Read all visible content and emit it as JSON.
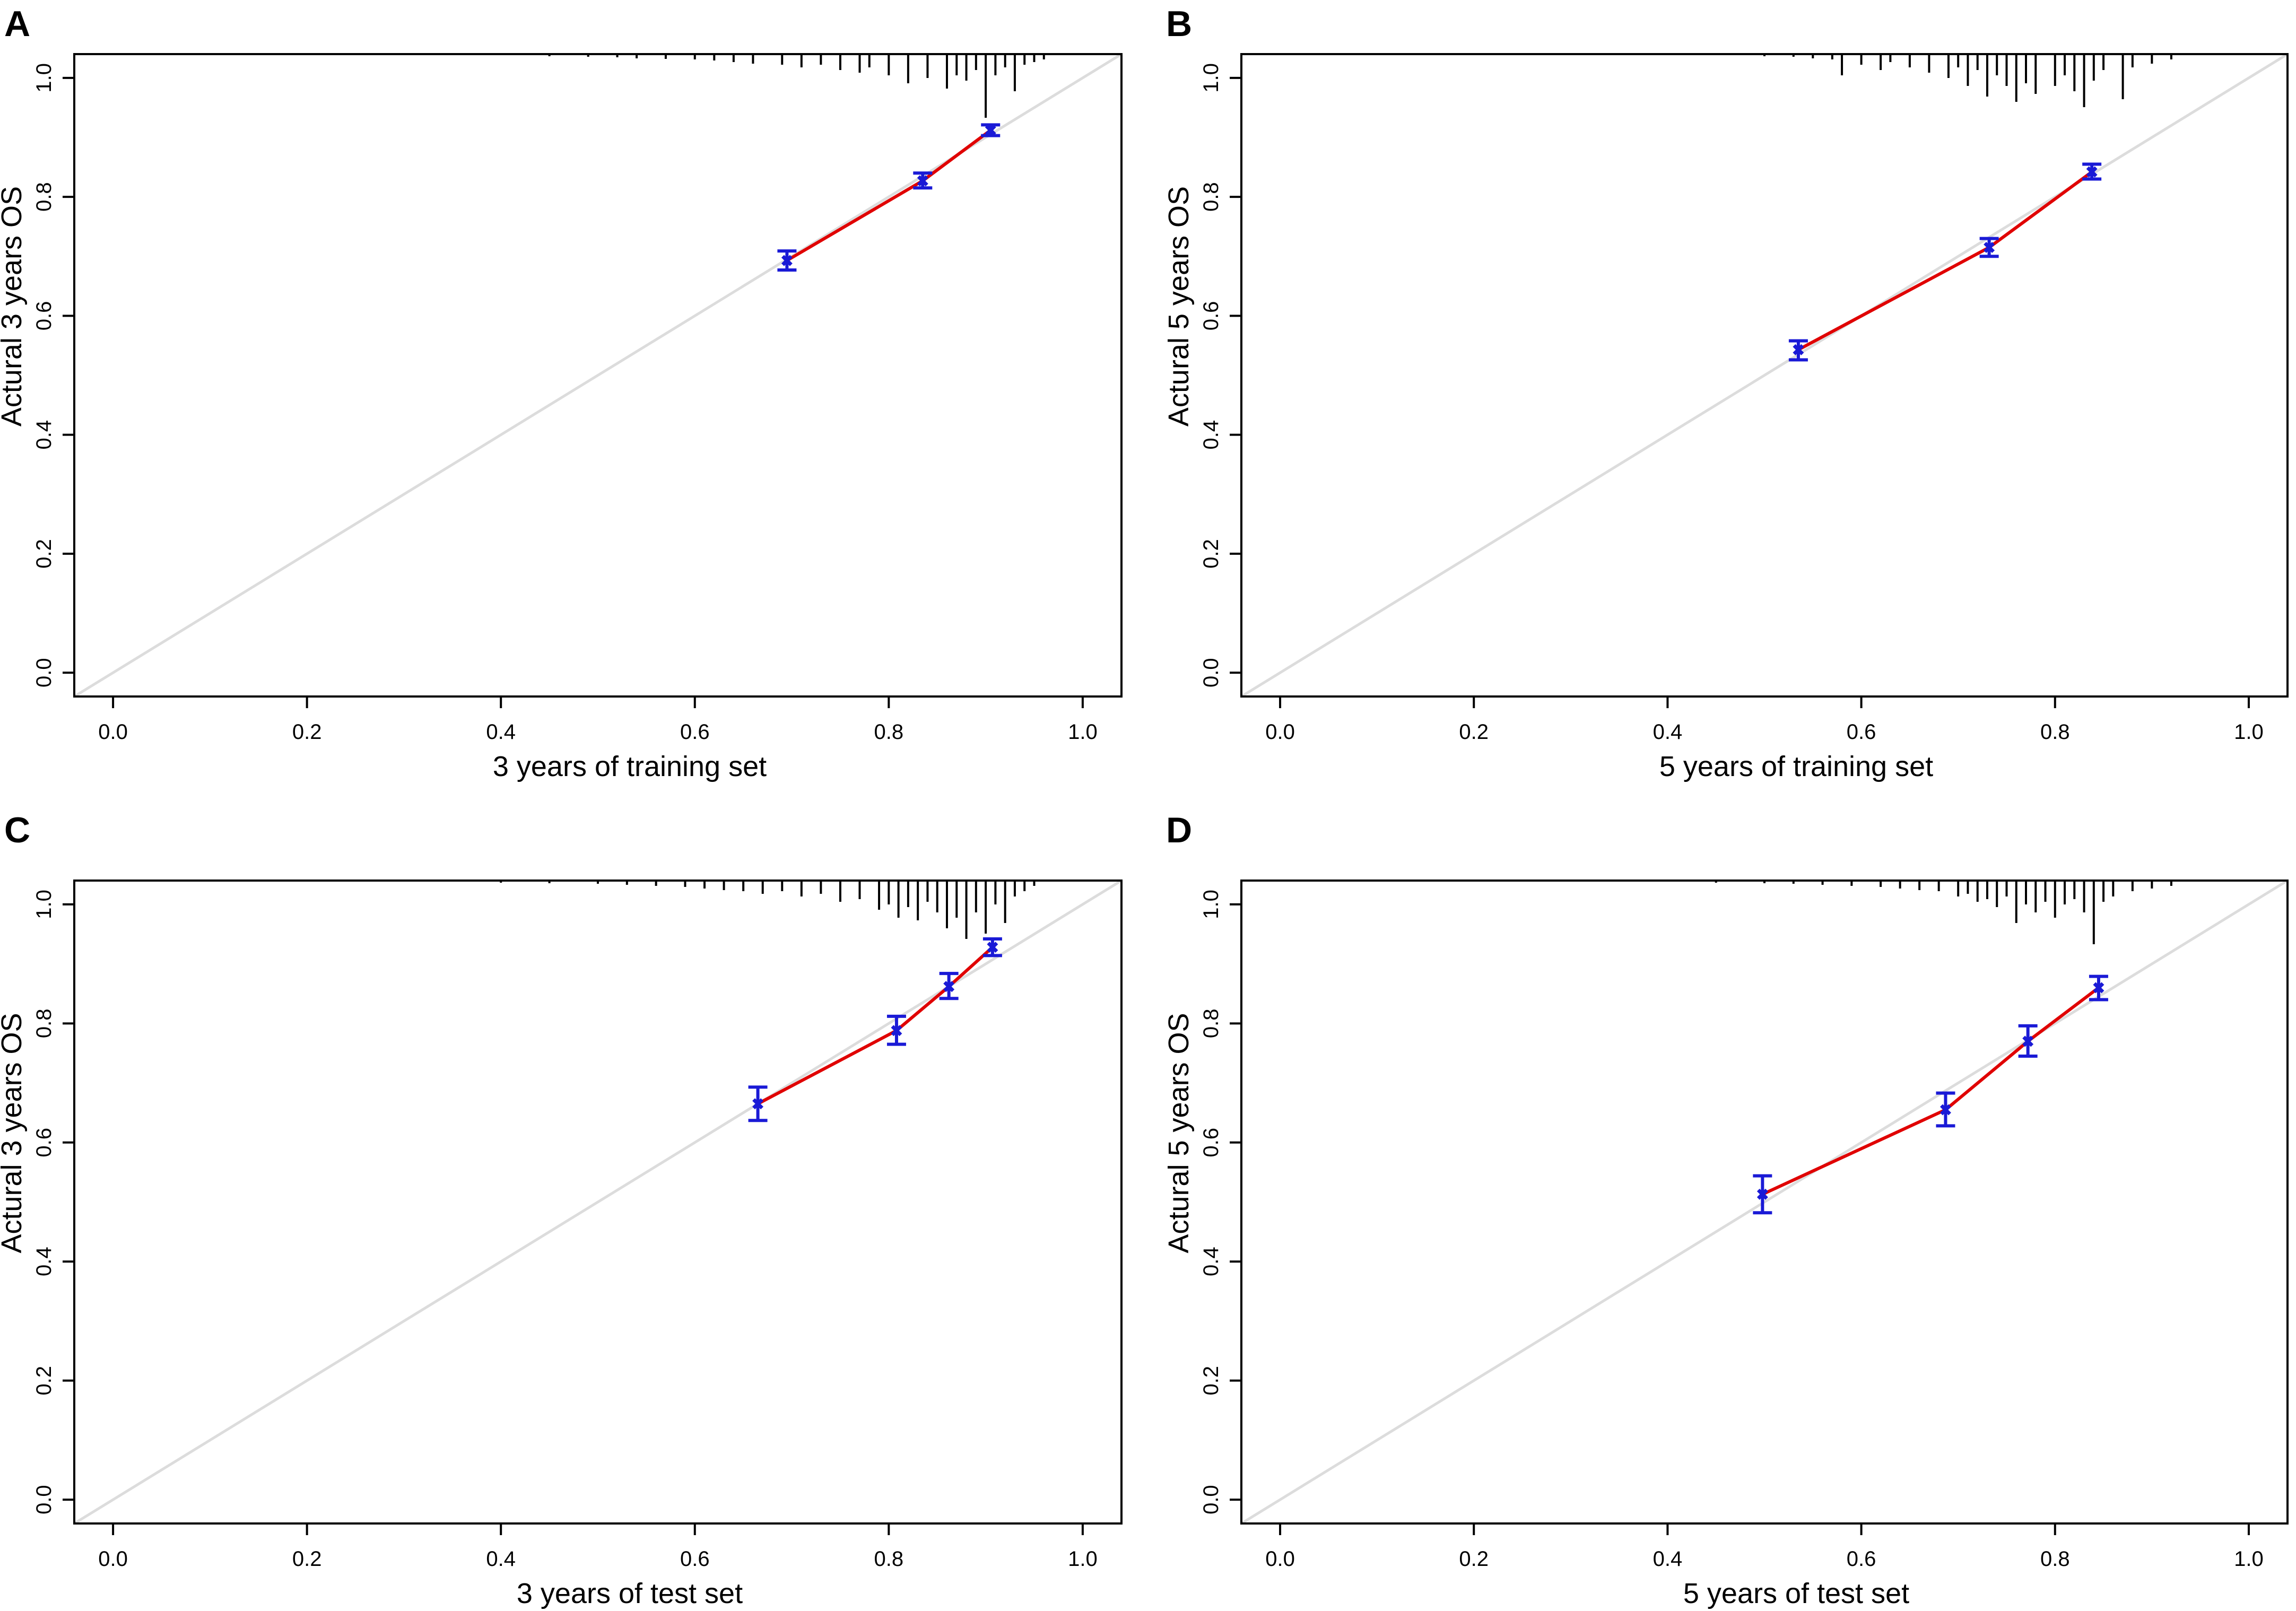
{
  "figure": {
    "kind": "calibration plots"
  },
  "chart_data": [
    {
      "type": "line",
      "panel": "A",
      "xlabel": "3 years of training set",
      "ylabel": "Actural 3 years OS",
      "xlim": [
        -0.04,
        1.04
      ],
      "ylim": [
        -0.04,
        1.04
      ],
      "ticks": [
        "0.0",
        "0.2",
        "0.4",
        "0.6",
        "0.8",
        "1.0"
      ],
      "tick_values": [
        0,
        0.2,
        0.4,
        0.6,
        0.8,
        1.0
      ],
      "reference_line": {
        "from": [
          -0.04,
          -0.04
        ],
        "to": [
          1.04,
          1.04
        ],
        "color": "#dcdcdc"
      },
      "series": [
        {
          "name": "calibration",
          "color": "#e00000",
          "points": [
            {
              "x": 0.695,
              "y": 0.693,
              "lo": 0.677,
              "hi": 0.709
            },
            {
              "x": 0.835,
              "y": 0.827,
              "lo": 0.815,
              "hi": 0.84
            },
            {
              "x": 0.905,
              "y": 0.912,
              "lo": 0.903,
              "hi": 0.921
            }
          ]
        }
      ],
      "errorbar_color": "#1a1ad6",
      "rug": [
        [
          0.45,
          4
        ],
        [
          0.49,
          5
        ],
        [
          0.52,
          6
        ],
        [
          0.54,
          8
        ],
        [
          0.57,
          9
        ],
        [
          0.6,
          10
        ],
        [
          0.62,
          12
        ],
        [
          0.64,
          15
        ],
        [
          0.66,
          18
        ],
        [
          0.69,
          20
        ],
        [
          0.71,
          25
        ],
        [
          0.73,
          20
        ],
        [
          0.75,
          30
        ],
        [
          0.77,
          35
        ],
        [
          0.78,
          25
        ],
        [
          0.8,
          40
        ],
        [
          0.82,
          55
        ],
        [
          0.84,
          45
        ],
        [
          0.86,
          65
        ],
        [
          0.87,
          40
        ],
        [
          0.88,
          50
        ],
        [
          0.89,
          30
        ],
        [
          0.9,
          120
        ],
        [
          0.91,
          40
        ],
        [
          0.92,
          25
        ],
        [
          0.93,
          70
        ],
        [
          0.94,
          20
        ],
        [
          0.95,
          15
        ],
        [
          0.96,
          10
        ]
      ]
    },
    {
      "type": "line",
      "panel": "B",
      "xlabel": "5 years of training set",
      "ylabel": "Actural 5 years OS",
      "xlim": [
        -0.04,
        1.04
      ],
      "ylim": [
        -0.04,
        1.04
      ],
      "ticks": [
        "0.0",
        "0.2",
        "0.4",
        "0.6",
        "0.8",
        "1.0"
      ],
      "tick_values": [
        0,
        0.2,
        0.4,
        0.6,
        0.8,
        1.0
      ],
      "reference_line": {
        "from": [
          -0.04,
          -0.04
        ],
        "to": [
          1.04,
          1.04
        ],
        "color": "#dcdcdc"
      },
      "series": [
        {
          "name": "calibration",
          "color": "#e00000",
          "points": [
            {
              "x": 0.535,
              "y": 0.543,
              "lo": 0.526,
              "hi": 0.558
            },
            {
              "x": 0.732,
              "y": 0.715,
              "lo": 0.7,
              "hi": 0.73
            },
            {
              "x": 0.838,
              "y": 0.842,
              "lo": 0.83,
              "hi": 0.855
            }
          ]
        }
      ],
      "errorbar_color": "#1a1ad6",
      "rug": [
        [
          0.5,
          4
        ],
        [
          0.53,
          5
        ],
        [
          0.55,
          8
        ],
        [
          0.57,
          10
        ],
        [
          0.58,
          40
        ],
        [
          0.6,
          20
        ],
        [
          0.62,
          30
        ],
        [
          0.63,
          15
        ],
        [
          0.65,
          25
        ],
        [
          0.67,
          35
        ],
        [
          0.69,
          45
        ],
        [
          0.7,
          25
        ],
        [
          0.71,
          60
        ],
        [
          0.72,
          30
        ],
        [
          0.73,
          80
        ],
        [
          0.74,
          40
        ],
        [
          0.75,
          60
        ],
        [
          0.76,
          90
        ],
        [
          0.77,
          55
        ],
        [
          0.78,
          75
        ],
        [
          0.8,
          60
        ],
        [
          0.81,
          40
        ],
        [
          0.82,
          70
        ],
        [
          0.83,
          100
        ],
        [
          0.84,
          50
        ],
        [
          0.85,
          30
        ],
        [
          0.87,
          85
        ],
        [
          0.88,
          25
        ],
        [
          0.9,
          18
        ],
        [
          0.92,
          10
        ]
      ]
    },
    {
      "type": "line",
      "panel": "C",
      "xlabel": "3 years of test set",
      "ylabel": "Actural 3 years OS",
      "xlim": [
        -0.04,
        1.04
      ],
      "ylim": [
        -0.04,
        1.04
      ],
      "ticks": [
        "0.0",
        "0.2",
        "0.4",
        "0.6",
        "0.8",
        "1.0"
      ],
      "tick_values": [
        0,
        0.2,
        0.4,
        0.6,
        0.8,
        1.0
      ],
      "reference_line": {
        "from": [
          -0.04,
          -0.04
        ],
        "to": [
          1.04,
          1.04
        ],
        "color": "#dcdcdc"
      },
      "series": [
        {
          "name": "calibration",
          "color": "#e00000",
          "points": [
            {
              "x": 0.665,
              "y": 0.665,
              "lo": 0.637,
              "hi": 0.693
            },
            {
              "x": 0.808,
              "y": 0.788,
              "lo": 0.765,
              "hi": 0.812
            },
            {
              "x": 0.862,
              "y": 0.862,
              "lo": 0.842,
              "hi": 0.884
            },
            {
              "x": 0.907,
              "y": 0.928,
              "lo": 0.914,
              "hi": 0.942
            }
          ]
        }
      ],
      "errorbar_color": "#1a1ad6",
      "rug": [
        [
          0.4,
          4
        ],
        [
          0.45,
          5
        ],
        [
          0.5,
          6
        ],
        [
          0.53,
          8
        ],
        [
          0.56,
          10
        ],
        [
          0.59,
          12
        ],
        [
          0.61,
          15
        ],
        [
          0.63,
          18
        ],
        [
          0.65,
          20
        ],
        [
          0.67,
          25
        ],
        [
          0.69,
          20
        ],
        [
          0.71,
          30
        ],
        [
          0.73,
          25
        ],
        [
          0.75,
          40
        ],
        [
          0.77,
          35
        ],
        [
          0.79,
          55
        ],
        [
          0.8,
          45
        ],
        [
          0.81,
          70
        ],
        [
          0.82,
          50
        ],
        [
          0.83,
          75
        ],
        [
          0.84,
          40
        ],
        [
          0.85,
          60
        ],
        [
          0.86,
          90
        ],
        [
          0.87,
          70
        ],
        [
          0.88,
          110
        ],
        [
          0.89,
          60
        ],
        [
          0.9,
          100
        ],
        [
          0.91,
          45
        ],
        [
          0.92,
          80
        ],
        [
          0.93,
          30
        ],
        [
          0.94,
          20
        ],
        [
          0.95,
          10
        ]
      ]
    },
    {
      "type": "line",
      "panel": "D",
      "xlabel": "5 years of test set",
      "ylabel": "Actural 5 years OS",
      "xlim": [
        -0.04,
        1.04
      ],
      "ylim": [
        -0.04,
        1.04
      ],
      "ticks": [
        "0.0",
        "0.2",
        "0.4",
        "0.6",
        "0.8",
        "1.0"
      ],
      "tick_values": [
        0,
        0.2,
        0.4,
        0.6,
        0.8,
        1.0
      ],
      "reference_line": {
        "from": [
          -0.04,
          -0.04
        ],
        "to": [
          1.04,
          1.04
        ],
        "color": "#dcdcdc"
      },
      "series": [
        {
          "name": "calibration",
          "color": "#e00000",
          "points": [
            {
              "x": 0.498,
              "y": 0.513,
              "lo": 0.482,
              "hi": 0.544
            },
            {
              "x": 0.687,
              "y": 0.655,
              "lo": 0.628,
              "hi": 0.683
            },
            {
              "x": 0.772,
              "y": 0.77,
              "lo": 0.745,
              "hi": 0.796
            },
            {
              "x": 0.845,
              "y": 0.86,
              "lo": 0.84,
              "hi": 0.879
            }
          ]
        }
      ],
      "errorbar_color": "#1a1ad6",
      "rug": [
        [
          0.45,
          4
        ],
        [
          0.5,
          5
        ],
        [
          0.53,
          6
        ],
        [
          0.56,
          8
        ],
        [
          0.59,
          10
        ],
        [
          0.62,
          12
        ],
        [
          0.64,
          15
        ],
        [
          0.66,
          18
        ],
        [
          0.68,
          20
        ],
        [
          0.7,
          30
        ],
        [
          0.71,
          25
        ],
        [
          0.72,
          40
        ],
        [
          0.73,
          35
        ],
        [
          0.74,
          50
        ],
        [
          0.75,
          30
        ],
        [
          0.76,
          80
        ],
        [
          0.77,
          45
        ],
        [
          0.78,
          60
        ],
        [
          0.79,
          40
        ],
        [
          0.8,
          70
        ],
        [
          0.81,
          45
        ],
        [
          0.82,
          35
        ],
        [
          0.83,
          60
        ],
        [
          0.84,
          120
        ],
        [
          0.85,
          40
        ],
        [
          0.86,
          30
        ],
        [
          0.88,
          20
        ],
        [
          0.9,
          15
        ],
        [
          0.92,
          10
        ]
      ]
    }
  ]
}
